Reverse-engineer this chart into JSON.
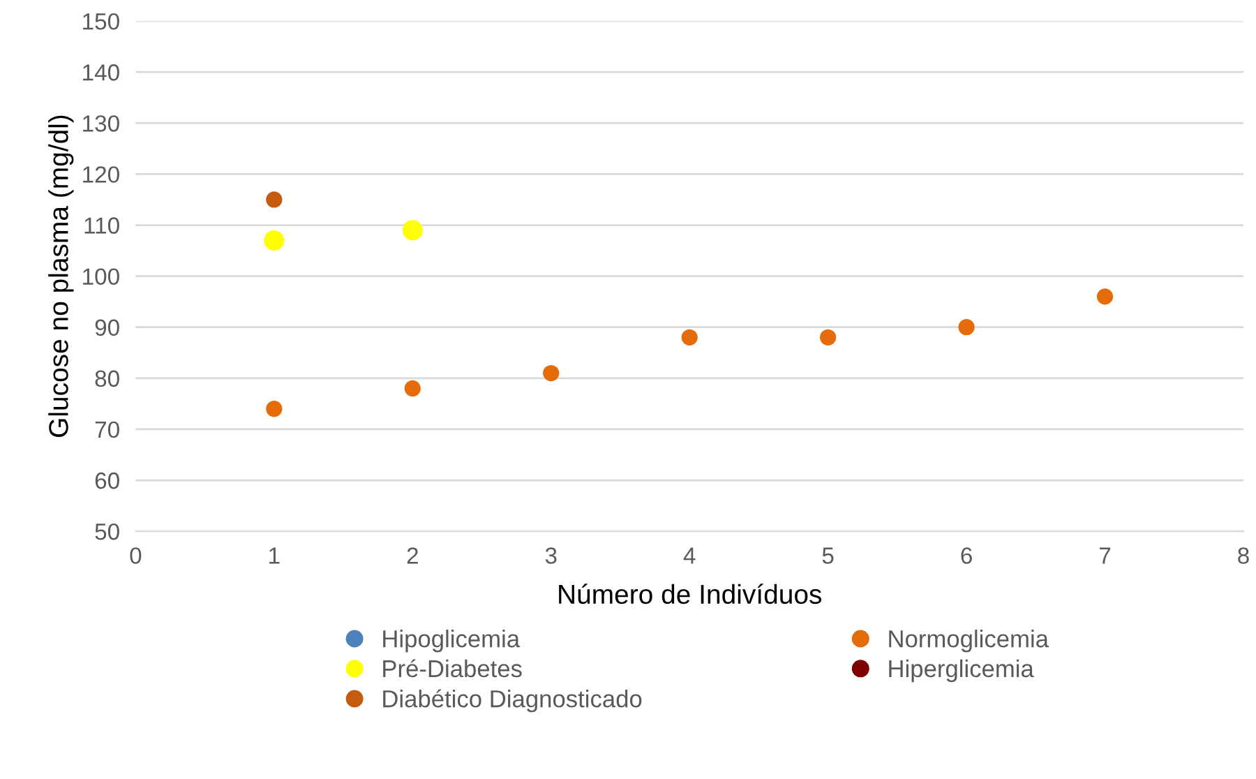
{
  "chart_data": {
    "type": "scatter",
    "xlabel": "Número de Indivíduos",
    "ylabel": "Glucose no plasma (mg/dl)",
    "xlim": [
      0,
      8
    ],
    "xticks": [
      0,
      1,
      2,
      3,
      4,
      5,
      6,
      7,
      8
    ],
    "ylim": [
      50,
      150
    ],
    "yticks": [
      50,
      60,
      70,
      80,
      90,
      100,
      110,
      120,
      130,
      140,
      150
    ],
    "grid": "y",
    "legend": "bottom",
    "marker": "circle",
    "series": [
      {
        "name": "Hipoglicemia",
        "color": "#4f81bd"
      },
      {
        "name": "Normoglicemia",
        "color": "#e46c0a",
        "x": [
          1,
          2,
          3,
          4,
          5,
          6,
          7
        ],
        "values": [
          74,
          78,
          81,
          88,
          88,
          90,
          96
        ]
      },
      {
        "name": "Pré-Diabetes",
        "color": "#ffff00",
        "x": [
          1,
          2
        ],
        "values": [
          107,
          109
        ]
      },
      {
        "name": "Hiperglicemia",
        "color": "#7f0000"
      },
      {
        "name": "Diabético Diagnosticado",
        "color": "#c55a11",
        "x": [
          1
        ],
        "values": [
          115
        ]
      }
    ]
  }
}
